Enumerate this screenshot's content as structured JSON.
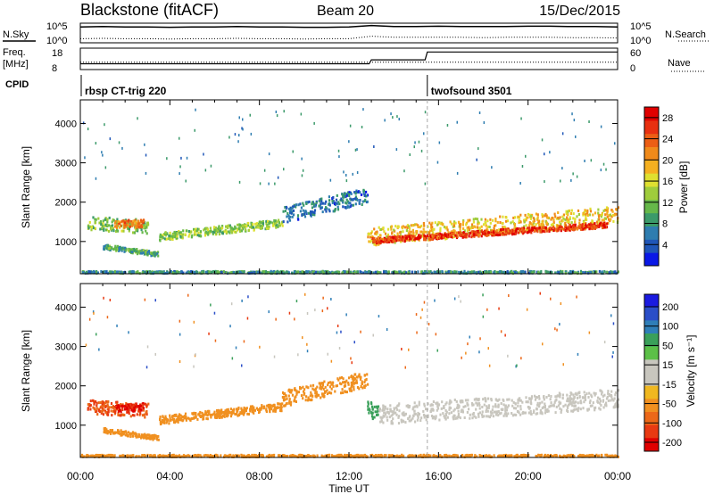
{
  "header": {
    "station": "Blackstone (fitACF)",
    "beam": "Beam 20",
    "date": "15/Dec/2015"
  },
  "panels": {
    "nsky": {
      "label": "N.Sky",
      "ticks": [
        "10^5",
        "10^0"
      ],
      "right_label": "N.Search",
      "right_ticks": [
        "10^5",
        "10^0"
      ]
    },
    "freq": {
      "label_line1": "Freq.",
      "label_line2": "[MHz]",
      "ticks": [
        "18",
        "8"
      ],
      "right_label": "Nave",
      "right_ticks": [
        "60",
        "0"
      ]
    },
    "cpid": {
      "label": "CPID",
      "segments": [
        {
          "name": "rbsp CT-trig 220",
          "start_hour": 0.0
        },
        {
          "name": "twofsound 3501",
          "start_hour": 15.5
        }
      ]
    }
  },
  "colors": {
    "power": [
      "#0a18e6",
      "#1f56b8",
      "#2e7db0",
      "#3b9a6a",
      "#66b84a",
      "#9fcc3c",
      "#dfe030",
      "#f5b020",
      "#f08a1a",
      "#ec5e14",
      "#e83010",
      "#e00000"
    ],
    "velocity_pos": [
      "#1a1ae0",
      "#2a4ec8",
      "#2f7fb8",
      "#3aa05a",
      "#5cc048"
    ],
    "velocity_neutral": "#c8c6be",
    "velocity_neg": [
      "#f0b820",
      "#f09020",
      "#ec6818",
      "#e83a12",
      "#e00000"
    ]
  },
  "chart_data": [
    {
      "type": "line",
      "title": "N.Sky / N.Search",
      "x": [
        0,
        1,
        2,
        3,
        4,
        5,
        6,
        7,
        8,
        9,
        10,
        11,
        12,
        13,
        14,
        15,
        16,
        17,
        18,
        19,
        20,
        21,
        22,
        23,
        24
      ],
      "series": [
        {
          "name": "N.Sky",
          "values": [
            4.2,
            4.3,
            4.2,
            4.2,
            4.1,
            4.2,
            4.2,
            4.3,
            4.2,
            4.2,
            4.1,
            4.1,
            4.2,
            4.6,
            4.3,
            4.3,
            4.4,
            4.3,
            4.3,
            4.3,
            4.4,
            4.4,
            4.3,
            4.3,
            4.2
          ]
        },
        {
          "name": "N.Search",
          "values": [
            0.9,
            1.0,
            0.9,
            0.9,
            0.8,
            0.9,
            0.9,
            1.0,
            0.9,
            0.9,
            0.8,
            0.9,
            0.9,
            1.6,
            1.3,
            1.3,
            1.3,
            1.3,
            1.2,
            1.3,
            1.3,
            1.3,
            1.2,
            1.2,
            1.1
          ]
        }
      ]
    },
    {
      "type": "line",
      "title": "Freq / Nave",
      "x": [
        0,
        12.9,
        13.0,
        15.4,
        15.5,
        24
      ],
      "series": [
        {
          "name": "Freq.",
          "values": [
            10.5,
            10.5,
            12.5,
            12.5,
            16.5,
            16.5
          ]
        },
        {
          "name": "Nave",
          "values": [
            20,
            20,
            20,
            20,
            20,
            20
          ]
        }
      ]
    },
    {
      "type": "heatmap",
      "title": "Power",
      "xlabel": "Time UT",
      "ylabel": "Slant Range [km]",
      "xlim": [
        0,
        24
      ],
      "ylim": [
        180,
        4600
      ],
      "x_ticks": [
        "00:00",
        "04:00",
        "08:00",
        "12:00",
        "16:00",
        "20:00",
        "00:00"
      ],
      "y_ticks": [
        1000,
        2000,
        3000,
        4000
      ],
      "colorbar_label": "Power [dB]",
      "colorbar_ticks": [
        4,
        8,
        12,
        16,
        20,
        24,
        28
      ],
      "colorbar_range": [
        0,
        30
      ],
      "echo_bands": [
        {
          "t": [
            0.3,
            3.0
          ],
          "range_center": [
            1500,
            1400
          ],
          "range_width": 350,
          "power": 12
        },
        {
          "t": [
            1.5,
            2.8
          ],
          "range_center": [
            1450,
            1500
          ],
          "range_width": 200,
          "power": 22
        },
        {
          "t": [
            1.0,
            3.5
          ],
          "range_center": [
            900,
            700
          ],
          "range_width": 120,
          "power": 10
        },
        {
          "t": [
            3.5,
            9.0
          ],
          "range_center": [
            1150,
            1500
          ],
          "range_width": 200,
          "power": 13
        },
        {
          "t": [
            9.0,
            12.8
          ],
          "range_center": [
            1700,
            2200
          ],
          "range_width": 400,
          "power": 6
        },
        {
          "t": [
            12.8,
            24.0
          ],
          "range_center": [
            1150,
            1700
          ],
          "range_width": 450,
          "power": 18
        },
        {
          "t": [
            13.0,
            23.5
          ],
          "range_center": [
            1050,
            1450
          ],
          "range_width": 140,
          "power": 26
        },
        {
          "t": [
            0.0,
            24.0
          ],
          "range_center": [
            230,
            230
          ],
          "range_width": 90,
          "power": 8
        }
      ]
    },
    {
      "type": "heatmap",
      "title": "Velocity",
      "xlabel": "Time UT",
      "ylabel": "Slant Range [km]",
      "xlim": [
        0,
        24
      ],
      "ylim": [
        180,
        4600
      ],
      "x_ticks": [
        "00:00",
        "04:00",
        "08:00",
        "12:00",
        "16:00",
        "20:00",
        "00:00"
      ],
      "y_ticks": [
        1000,
        2000,
        3000,
        4000
      ],
      "colorbar_label": "Velocity [m s⁻¹]",
      "colorbar_ticks": [
        "200",
        "100",
        "50",
        "15",
        "-15",
        "-50",
        "-100",
        "-200"
      ],
      "echo_bands": [
        {
          "t": [
            0.3,
            3.0
          ],
          "range_center": [
            1500,
            1400
          ],
          "range_width": 350,
          "velocity": -100
        },
        {
          "t": [
            1.5,
            2.8
          ],
          "range_center": [
            1450,
            1500
          ],
          "range_width": 200,
          "velocity": -200
        },
        {
          "t": [
            1.0,
            3.5
          ],
          "range_center": [
            900,
            700
          ],
          "range_width": 120,
          "velocity": -40
        },
        {
          "t": [
            3.5,
            9.0
          ],
          "range_center": [
            1150,
            1500
          ],
          "range_width": 200,
          "velocity": -40
        },
        {
          "t": [
            9.0,
            12.8
          ],
          "range_center": [
            1700,
            2200
          ],
          "range_width": 400,
          "velocity": -30
        },
        {
          "t": [
            12.8,
            13.3
          ],
          "range_center": [
            1400,
            1400
          ],
          "range_width": 450,
          "velocity": 40
        },
        {
          "t": [
            13.3,
            24.0
          ],
          "range_center": [
            1300,
            1700
          ],
          "range_width": 500,
          "velocity": 0
        },
        {
          "t": [
            0.0,
            24.0
          ],
          "range_center": [
            230,
            230
          ],
          "range_width": 90,
          "velocity": -30
        }
      ]
    }
  ]
}
